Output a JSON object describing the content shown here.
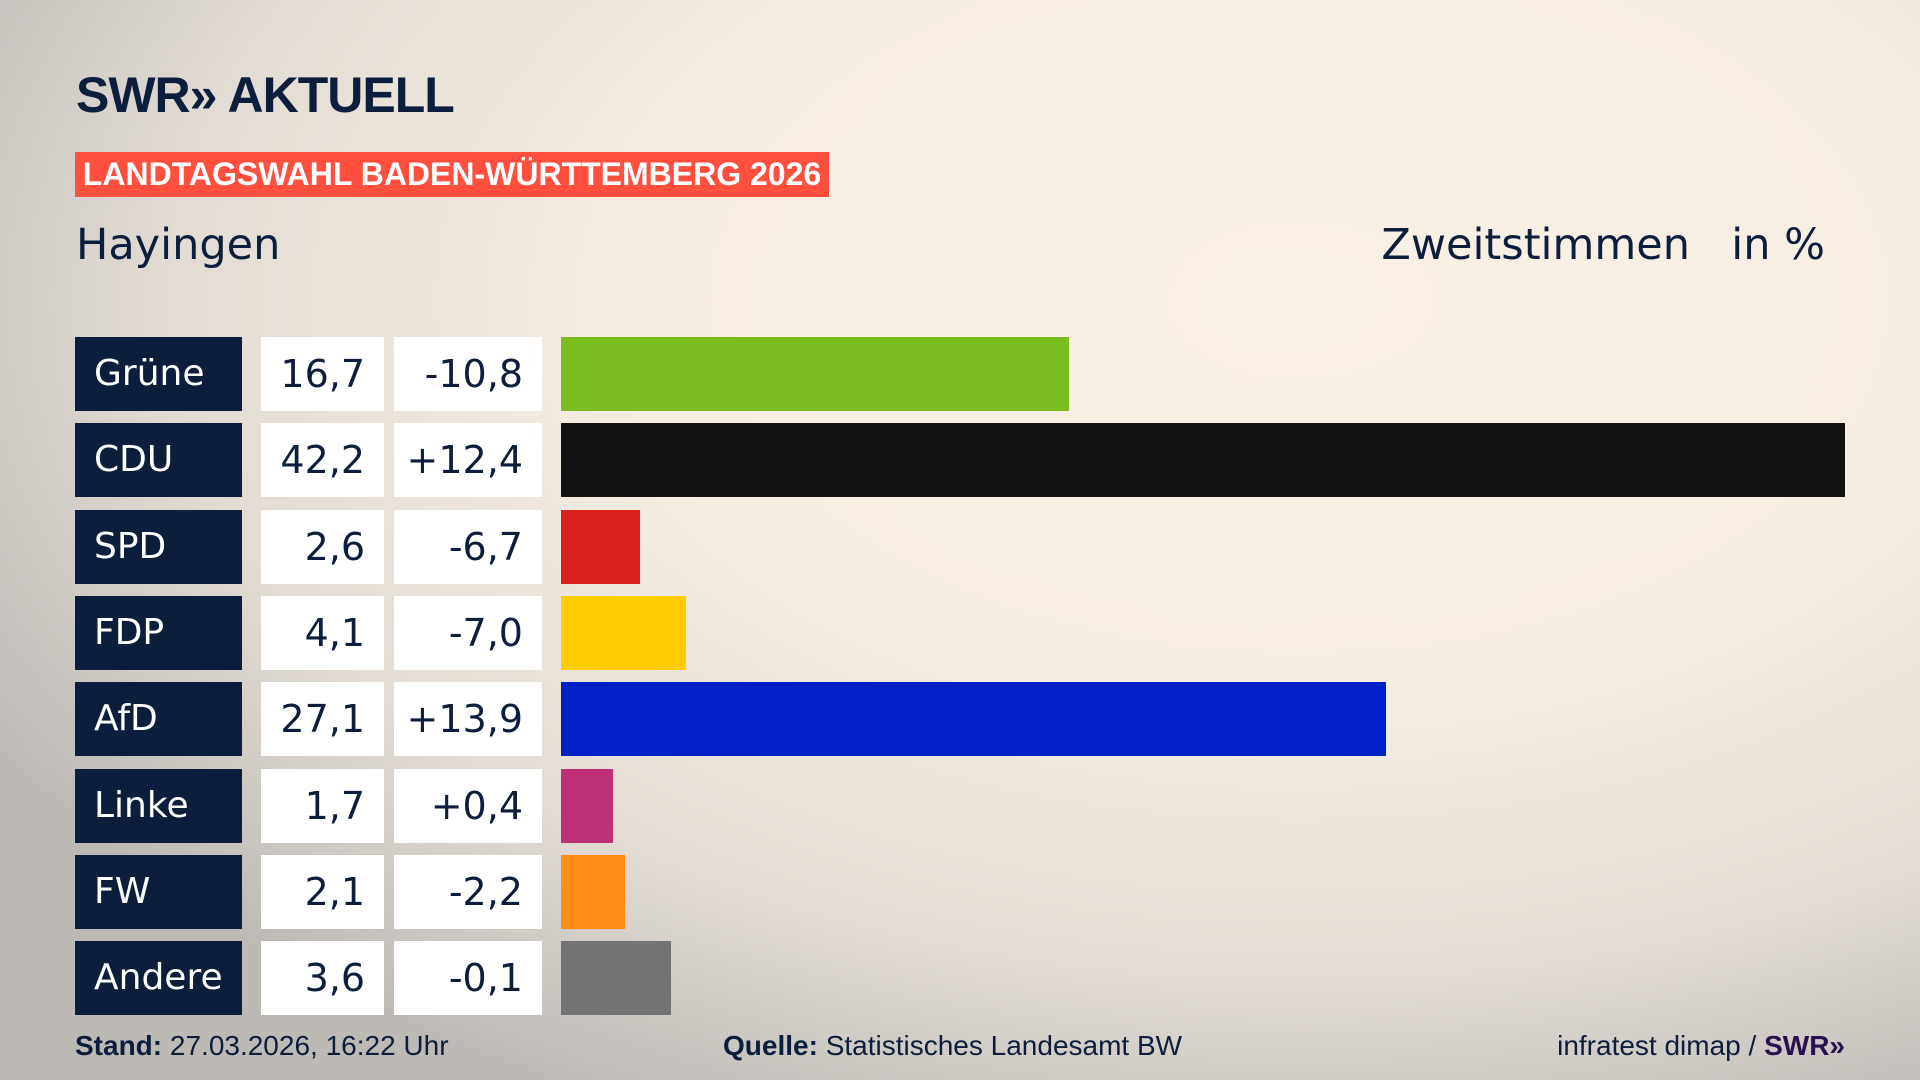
{
  "header": {
    "logo": "SWR» AKTUELL",
    "banner": "LANDTAGSWAHL BADEN-WÜRTTEMBERG 2026",
    "place": "Hayingen",
    "metric": "Zweitstimmen",
    "unit": "in %"
  },
  "chart_data": {
    "type": "bar",
    "orientation": "horizontal",
    "categories": [
      "Grüne",
      "CDU",
      "SPD",
      "FDP",
      "AfD",
      "Linke",
      "FW",
      "Andere"
    ],
    "values": [
      16.7,
      42.2,
      2.6,
      4.1,
      27.1,
      1.7,
      2.1,
      3.6
    ],
    "value_labels": [
      "16,7",
      "42,2",
      "2,6",
      "4,1",
      "27,1",
      "1,7",
      "2,1",
      "3,6"
    ],
    "diff_labels": [
      "-10,8",
      "+12,4",
      "-6,7",
      "-7,0",
      "+13,9",
      "+0,4",
      "-2,2",
      "-0,1"
    ],
    "colors": [
      "#7bbd1e",
      "#121212",
      "#d9201c",
      "#ffcc00",
      "#0020c8",
      "#be3075",
      "#ff8c14",
      "#737373"
    ]
  },
  "footer": {
    "stand_label": "Stand:",
    "stand_value": " 27.03.2026, 16:22 Uhr",
    "source_label": "Quelle:",
    "source_value": " Statistisches Landesamt BW",
    "credit": "infratest dimap / ",
    "credit_logo": "SWR»"
  }
}
